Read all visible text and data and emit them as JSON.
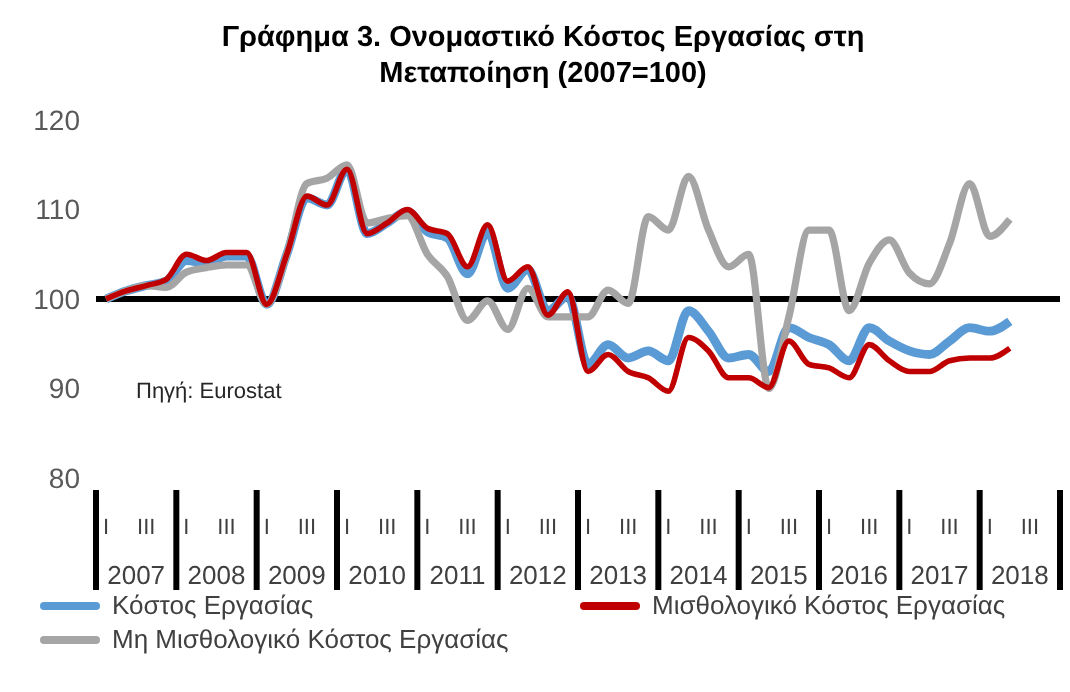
{
  "chart_data": {
    "type": "line",
    "title": "Γράφημα 3. Ονομαστικό Κόστος Εργασίας στη Μεταποίηση (2007=100)",
    "categories": [
      "I",
      null,
      "III",
      null,
      "I",
      null,
      "III",
      null,
      "I",
      null,
      "III",
      null,
      "I",
      null,
      "III",
      null,
      "I",
      null,
      "III",
      null,
      "I",
      null,
      "III",
      null,
      "I",
      null,
      "III",
      null,
      "I",
      null,
      "III",
      null,
      "I",
      null,
      "III",
      null,
      "I",
      null,
      "III",
      null,
      "I",
      null,
      "III",
      null,
      "I",
      null,
      "III",
      null
    ],
    "series": [
      {
        "name": "Κόστος Εργασίας",
        "color": "#5b9bd5",
        "values": [
          100,
          100.9,
          101.5,
          102,
          104.3,
          104,
          104.8,
          104.8,
          99.4,
          105,
          111.3,
          110.5,
          114.5,
          107.3,
          108.5,
          109.8,
          107.5,
          106.8,
          102.8,
          107.5,
          101.2,
          103.3,
          98.7,
          100.3,
          92.7,
          94.9,
          93.4,
          94.2,
          93.1,
          98.7,
          96.4,
          93.4,
          93.8,
          91.9,
          96.8,
          95.7,
          94.9,
          93.1,
          96.8,
          95.3,
          94.2,
          93.8,
          95.3,
          96.8,
          96.4,
          97.5,
          null,
          null
        ]
      },
      {
        "name": "Μισθολογικό Κόστος Εργασίας",
        "color": "#c00000",
        "values": [
          100,
          100.9,
          101.5,
          102.2,
          105,
          104.3,
          105.2,
          105.2,
          99.4,
          105,
          111.5,
          110.5,
          114.5,
          107.3,
          108.5,
          110,
          107.9,
          107.3,
          103.6,
          108.3,
          102,
          103.6,
          98.2,
          100.8,
          91.9,
          93.8,
          91.9,
          91.2,
          89.7,
          95.7,
          94.2,
          91.2,
          91.2,
          90.1,
          95.3,
          92.7,
          92.3,
          91.2,
          94.9,
          93.1,
          91.9,
          91.9,
          93.1,
          93.4,
          93.4,
          94.5,
          null,
          null
        ]
      },
      {
        "name": "Μη Μισθολογικό Κόστος Εργασίας",
        "color": "#a5a5a5",
        "values": [
          100,
          100.9,
          101.5,
          101.3,
          103,
          103.5,
          103.8,
          103.8,
          99.4,
          105,
          112.9,
          113.5,
          115,
          108.5,
          109,
          109.3,
          105,
          102.5,
          97.6,
          99.8,
          96.6,
          101.2,
          98,
          98,
          98,
          101,
          99.5,
          109.2,
          107.7,
          113.7,
          107.7,
          103.6,
          105,
          90,
          98,
          107.7,
          107.7,
          98.7,
          104,
          106.6,
          102.9,
          101.7,
          106.2,
          112.9,
          107,
          108.9,
          null,
          null
        ]
      }
    ],
    "ylim": [
      80,
      120
    ],
    "yticks": [
      80,
      90,
      100,
      110,
      120
    ],
    "ref_lines": [
      {
        "axis": "y",
        "value": 100,
        "color": "#000000"
      }
    ],
    "legend": "bottom",
    "annotations": [
      "2007",
      "2008",
      "2009",
      "2010",
      "2011",
      "2012",
      "2013",
      "2014",
      "2015",
      "2016",
      "2017",
      "2018",
      "Πηγή: Eurostat"
    ]
  }
}
